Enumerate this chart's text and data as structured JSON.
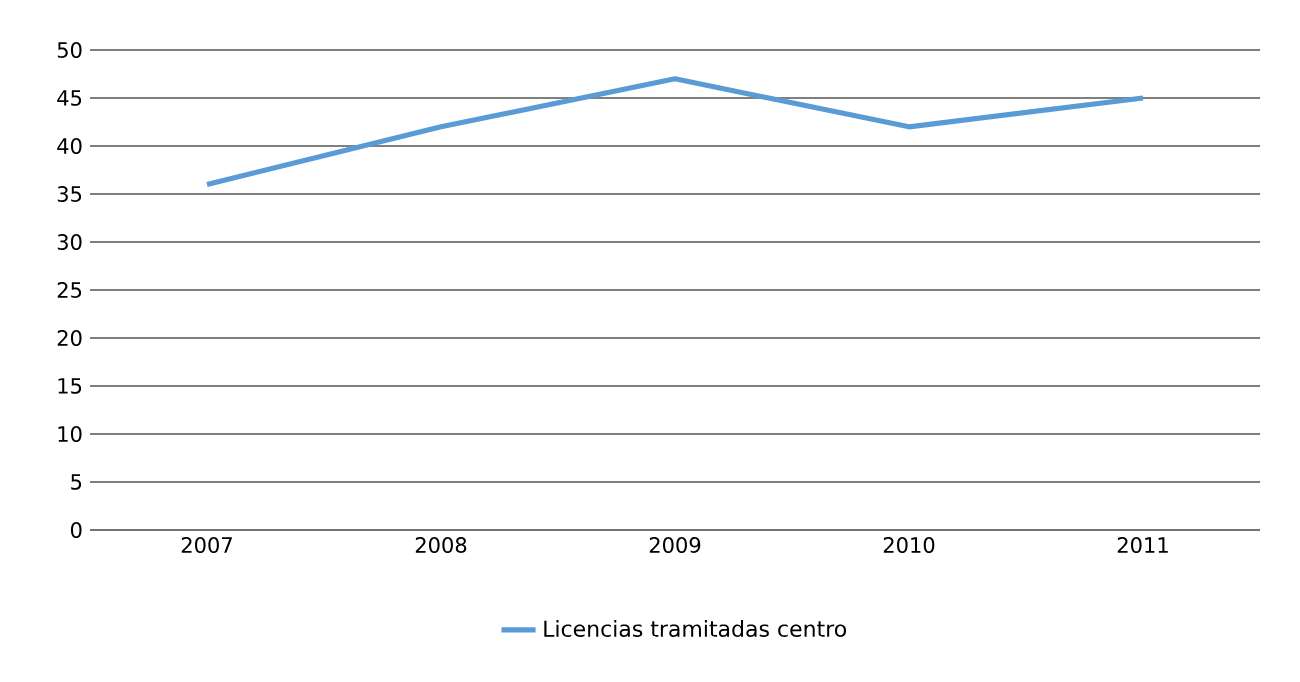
{
  "chart_data": {
    "type": "line",
    "categories": [
      "2007",
      "2008",
      "2009",
      "2010",
      "2011"
    ],
    "series": [
      {
        "name": "Licencias tramitadas centro",
        "color": "#5b9bd5",
        "values": [
          36,
          42,
          47,
          42,
          45
        ]
      }
    ],
    "ylim": [
      0,
      50
    ],
    "yticks": [
      0,
      5,
      10,
      15,
      20,
      25,
      30,
      35,
      40,
      45,
      50
    ],
    "grid": "y",
    "legend": "bottom",
    "marker": "none",
    "line_style": "solid"
  }
}
